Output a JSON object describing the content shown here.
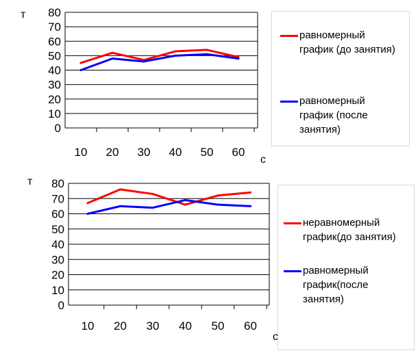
{
  "chart_data": [
    {
      "type": "line",
      "categories": [
        "10",
        "20",
        "30",
        "40",
        "50",
        "60"
      ],
      "series": [
        {
          "name": "равномерный график (до занятия)",
          "values": [
            45,
            52,
            47,
            53,
            54,
            49
          ],
          "color": "#ff0000"
        },
        {
          "name": "равномерный график (после занятия)",
          "values": [
            40,
            48,
            46,
            50,
            51,
            48
          ],
          "color": "#0000ff"
        }
      ],
      "yticks": [
        "0",
        "10",
        "20",
        "30",
        "40",
        "50",
        "60",
        "70",
        "80"
      ],
      "ylim": [
        0,
        80
      ],
      "ylabel": "т",
      "xlabel": "с",
      "grid": true,
      "legend_position": "right",
      "legend": [
        {
          "label": "равномерный график (до занятия)",
          "color": "#ff0000"
        },
        {
          "label": "равномерный график (после занятия)",
          "color": "#0000ff"
        }
      ]
    },
    {
      "type": "line",
      "categories": [
        "10",
        "20",
        "30",
        "40",
        "50",
        "60"
      ],
      "series": [
        {
          "name": "неравномерный график(до занятия)",
          "values": [
            67,
            76,
            73,
            66,
            72,
            74
          ],
          "color": "#ff0000"
        },
        {
          "name": "равномерный график(после занятия)",
          "values": [
            60,
            65,
            64,
            69,
            66,
            65
          ],
          "color": "#0000ff"
        }
      ],
      "yticks": [
        "0",
        "10",
        "20",
        "30",
        "40",
        "50",
        "60",
        "70",
        "80"
      ],
      "ylim": [
        0,
        80
      ],
      "ylabel": "т",
      "xlabel": "с",
      "grid": true,
      "legend_position": "right",
      "legend": [
        {
          "label": "неравномерный график(до занятия)",
          "color": "#ff0000"
        },
        {
          "label": "равномерный график(после занятия)",
          "color": "#0000ff"
        }
      ]
    }
  ]
}
